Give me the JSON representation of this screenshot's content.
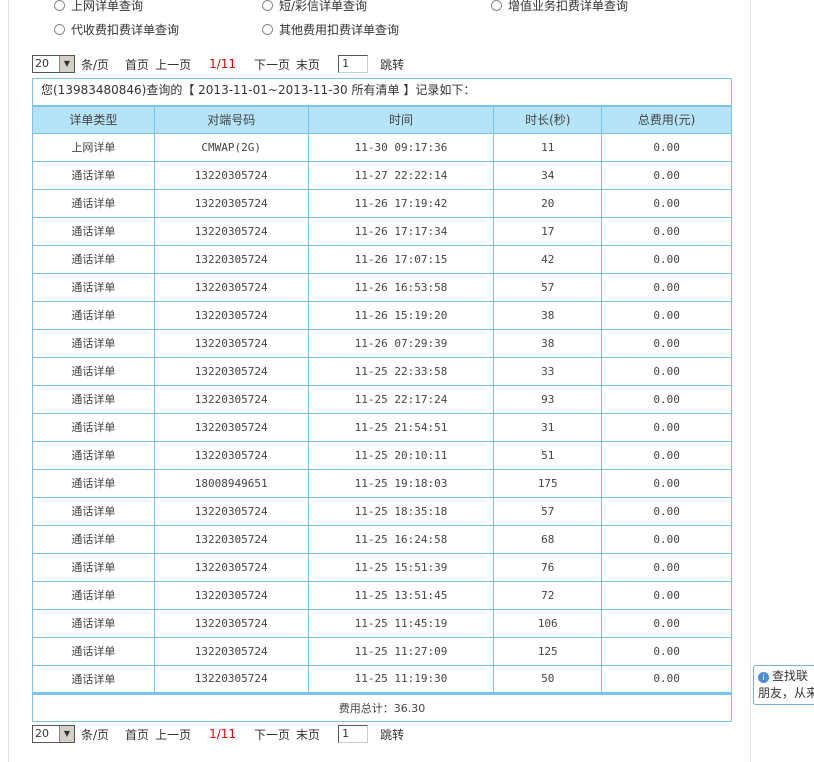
{
  "query_options": [
    {
      "label": "上网详单查询"
    },
    {
      "label": "短/彩信详单查询"
    },
    {
      "label": "增值业务扣费详单查询"
    },
    {
      "label": "代收费扣费详单查询"
    },
    {
      "label": "其他费用扣费详单查询"
    }
  ],
  "pager": {
    "page_size": "20",
    "per_page": "条/页",
    "first": "首页",
    "prev": "上一页",
    "current": "1/11",
    "next": "下一页",
    "last": "末页",
    "jump_value": "1",
    "jump": "跳转"
  },
  "info": "您(13983480846)查询的【 2013-11-01~2013-11-30 所有清单 】记录如下：",
  "columns": [
    "详单类型",
    "对端号码",
    "时间",
    "时长(秒)",
    "总费用(元)"
  ],
  "rows": [
    [
      "上网详单",
      "CMWAP(2G)",
      "11-30 09:17:36",
      "11",
      "0.00"
    ],
    [
      "通话详单",
      "13220305724",
      "11-27 22:22:14",
      "34",
      "0.00"
    ],
    [
      "通话详单",
      "13220305724",
      "11-26 17:19:42",
      "20",
      "0.00"
    ],
    [
      "通话详单",
      "13220305724",
      "11-26 17:17:34",
      "17",
      "0.00"
    ],
    [
      "通话详单",
      "13220305724",
      "11-26 17:07:15",
      "42",
      "0.00"
    ],
    [
      "通话详单",
      "13220305724",
      "11-26 16:53:58",
      "57",
      "0.00"
    ],
    [
      "通话详单",
      "13220305724",
      "11-26 15:19:20",
      "38",
      "0.00"
    ],
    [
      "通话详单",
      "13220305724",
      "11-26 07:29:39",
      "38",
      "0.00"
    ],
    [
      "通话详单",
      "13220305724",
      "11-25 22:33:58",
      "33",
      "0.00"
    ],
    [
      "通话详单",
      "13220305724",
      "11-25 22:17:24",
      "93",
      "0.00"
    ],
    [
      "通话详单",
      "13220305724",
      "11-25 21:54:51",
      "31",
      "0.00"
    ],
    [
      "通话详单",
      "13220305724",
      "11-25 20:10:11",
      "51",
      "0.00"
    ],
    [
      "通话详单",
      "18008949651",
      "11-25 19:18:03",
      "175",
      "0.00"
    ],
    [
      "通话详单",
      "13220305724",
      "11-25 18:35:18",
      "57",
      "0.00"
    ],
    [
      "通话详单",
      "13220305724",
      "11-25 16:24:58",
      "68",
      "0.00"
    ],
    [
      "通话详单",
      "13220305724",
      "11-25 15:51:39",
      "76",
      "0.00"
    ],
    [
      "通话详单",
      "13220305724",
      "11-25 13:51:45",
      "72",
      "0.00"
    ],
    [
      "通话详单",
      "13220305724",
      "11-25 11:45:19",
      "106",
      "0.00"
    ],
    [
      "通话详单",
      "13220305724",
      "11-25 11:27:09",
      "125",
      "0.00"
    ],
    [
      "通话详单",
      "13220305724",
      "11-25 11:19:30",
      "50",
      "0.00"
    ]
  ],
  "total": "费用总计：36.30",
  "tooltip": {
    "line1": "查找联",
    "line2": "朋友，从来"
  }
}
